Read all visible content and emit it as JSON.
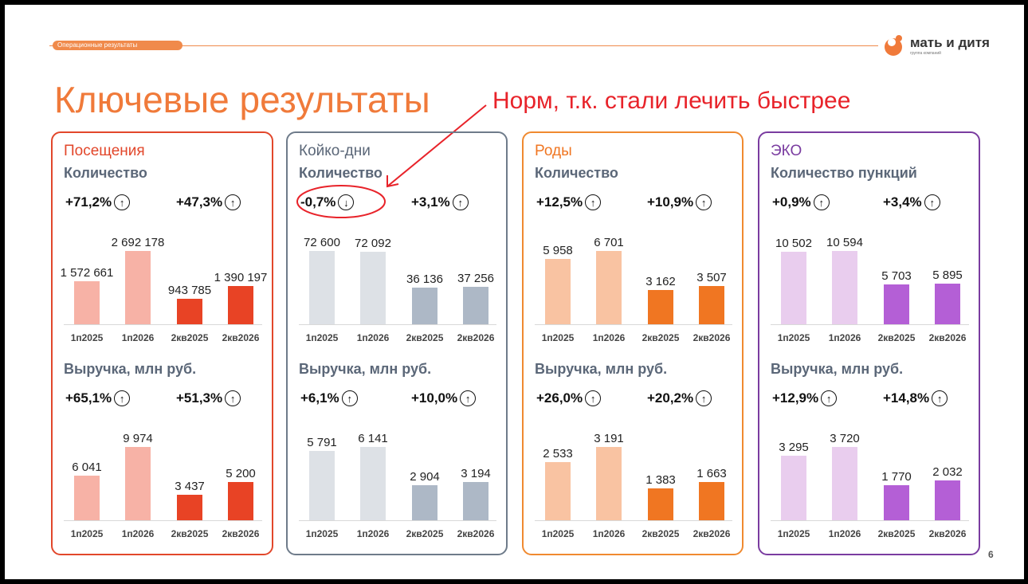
{
  "header": {
    "section_tab": "Операционные результаты"
  },
  "logo": {
    "name": "мать и дитя",
    "subtitle": "группа компаний"
  },
  "title": "Ключевые результаты",
  "annotation": "Норм, т.к. стали лечить быстрее",
  "page_number": "6",
  "colors": {
    "posesh": "#e2472b",
    "koyko": "#6e7b8a",
    "rody": "#f08a30",
    "eko": "#7a3ca0",
    "annotation": "#e8232a"
  },
  "panels": [
    {
      "title": "Посещения",
      "qty": {
        "label": "Количество",
        "pct1": "+71,2%",
        "dir1": "up",
        "pct2": "+47,3%",
        "dir2": "up"
      },
      "rev": {
        "label": "Выручка, млн руб.",
        "pct1": "+65,1%",
        "dir1": "up",
        "pct2": "+51,3%",
        "dir2": "up"
      }
    },
    {
      "title": "Койко-дни",
      "qty": {
        "label": "Количество",
        "pct1": "-0,7%",
        "dir1": "down",
        "pct2": "+3,1%",
        "dir2": "up"
      },
      "rev": {
        "label": "Выручка, млн руб.",
        "pct1": "+6,1%",
        "dir1": "up",
        "pct2": "+10,0%",
        "dir2": "up"
      }
    },
    {
      "title": "Роды",
      "qty": {
        "label": "Количество",
        "pct1": "+12,5%",
        "dir1": "up",
        "pct2": "+10,9%",
        "dir2": "up"
      },
      "rev": {
        "label": "Выручка, млн руб.",
        "pct1": "+26,0%",
        "dir1": "up",
        "pct2": "+20,2%",
        "dir2": "up"
      }
    },
    {
      "title": "ЭКО",
      "qty": {
        "label": "Количество пункций",
        "pct1": "+0,9%",
        "dir1": "up",
        "pct2": "+3,4%",
        "dir2": "up"
      },
      "rev": {
        "label": "Выручка, млн руб.",
        "pct1": "+12,9%",
        "dir1": "up",
        "pct2": "+14,8%",
        "dir2": "up"
      }
    }
  ],
  "chart_data": [
    {
      "type": "bar",
      "panel": "Посещения",
      "metric": "Количество",
      "categories": [
        "1п2025",
        "1п2026",
        "2кв2025",
        "2кв2026"
      ],
      "values": [
        1572661,
        2692178,
        943785,
        1390197
      ],
      "labels": [
        "1 572 661",
        "2 692 178",
        "943 785",
        "1 390 197"
      ],
      "colors": [
        "#f7b2a6",
        "#f7b2a6",
        "#e84325",
        "#e84325"
      ]
    },
    {
      "type": "bar",
      "panel": "Посещения",
      "metric": "Выручка, млн руб.",
      "categories": [
        "1п2025",
        "1п2026",
        "2кв2025",
        "2кв2026"
      ],
      "values": [
        6041,
        9974,
        3437,
        5200
      ],
      "labels": [
        "6 041",
        "9 974",
        "3 437",
        "5 200"
      ],
      "colors": [
        "#f7b2a6",
        "#f7b2a6",
        "#e84325",
        "#e84325"
      ]
    },
    {
      "type": "bar",
      "panel": "Койко-дни",
      "metric": "Количество",
      "categories": [
        "1п2025",
        "1п2026",
        "2кв2025",
        "2кв2026"
      ],
      "values": [
        72600,
        72092,
        36136,
        37256
      ],
      "labels": [
        "72 600",
        "72 092",
        "36 136",
        "37 256"
      ],
      "colors": [
        "#dde1e6",
        "#dde1e6",
        "#adb8c6",
        "#adb8c6"
      ]
    },
    {
      "type": "bar",
      "panel": "Койко-дни",
      "metric": "Выручка, млн руб.",
      "categories": [
        "1п2025",
        "1п2026",
        "2кв2025",
        "2кв2026"
      ],
      "values": [
        5791,
        6141,
        2904,
        3194
      ],
      "labels": [
        "5 791",
        "6 141",
        "2 904",
        "3 194"
      ],
      "colors": [
        "#dde1e6",
        "#dde1e6",
        "#adb8c6",
        "#adb8c6"
      ]
    },
    {
      "type": "bar",
      "panel": "Роды",
      "metric": "Количество",
      "categories": [
        "1п2025",
        "1п2026",
        "2кв2025",
        "2кв2026"
      ],
      "values": [
        5958,
        6701,
        3162,
        3507
      ],
      "labels": [
        "5 958",
        "6 701",
        "3 162",
        "3 507"
      ],
      "colors": [
        "#f9c3a2",
        "#f9c3a2",
        "#f07622",
        "#f07622"
      ]
    },
    {
      "type": "bar",
      "panel": "Роды",
      "metric": "Выручка, млн руб.",
      "categories": [
        "1п2025",
        "1п2026",
        "2кв2025",
        "2кв2026"
      ],
      "values": [
        2533,
        3191,
        1383,
        1663
      ],
      "labels": [
        "2 533",
        "3 191",
        "1 383",
        "1 663"
      ],
      "colors": [
        "#f9c3a2",
        "#f9c3a2",
        "#f07622",
        "#f07622"
      ]
    },
    {
      "type": "bar",
      "panel": "ЭКО",
      "metric": "Количество пункций",
      "categories": [
        "1п2025",
        "1п2026",
        "2кв2025",
        "2кв2026"
      ],
      "values": [
        10502,
        10594,
        5703,
        5895
      ],
      "labels": [
        "10 502",
        "10 594",
        "5 703",
        "5 895"
      ],
      "colors": [
        "#e9cdee",
        "#e9cdee",
        "#b45fd6",
        "#b45fd6"
      ]
    },
    {
      "type": "bar",
      "panel": "ЭКО",
      "metric": "Выручка, млн руб.",
      "categories": [
        "1п2025",
        "1п2026",
        "2кв2025",
        "2кв2026"
      ],
      "values": [
        3295,
        3720,
        1770,
        2032
      ],
      "labels": [
        "3 295",
        "3 720",
        "1 770",
        "2 032"
      ],
      "colors": [
        "#e9cdee",
        "#e9cdee",
        "#b45fd6",
        "#b45fd6"
      ]
    }
  ]
}
